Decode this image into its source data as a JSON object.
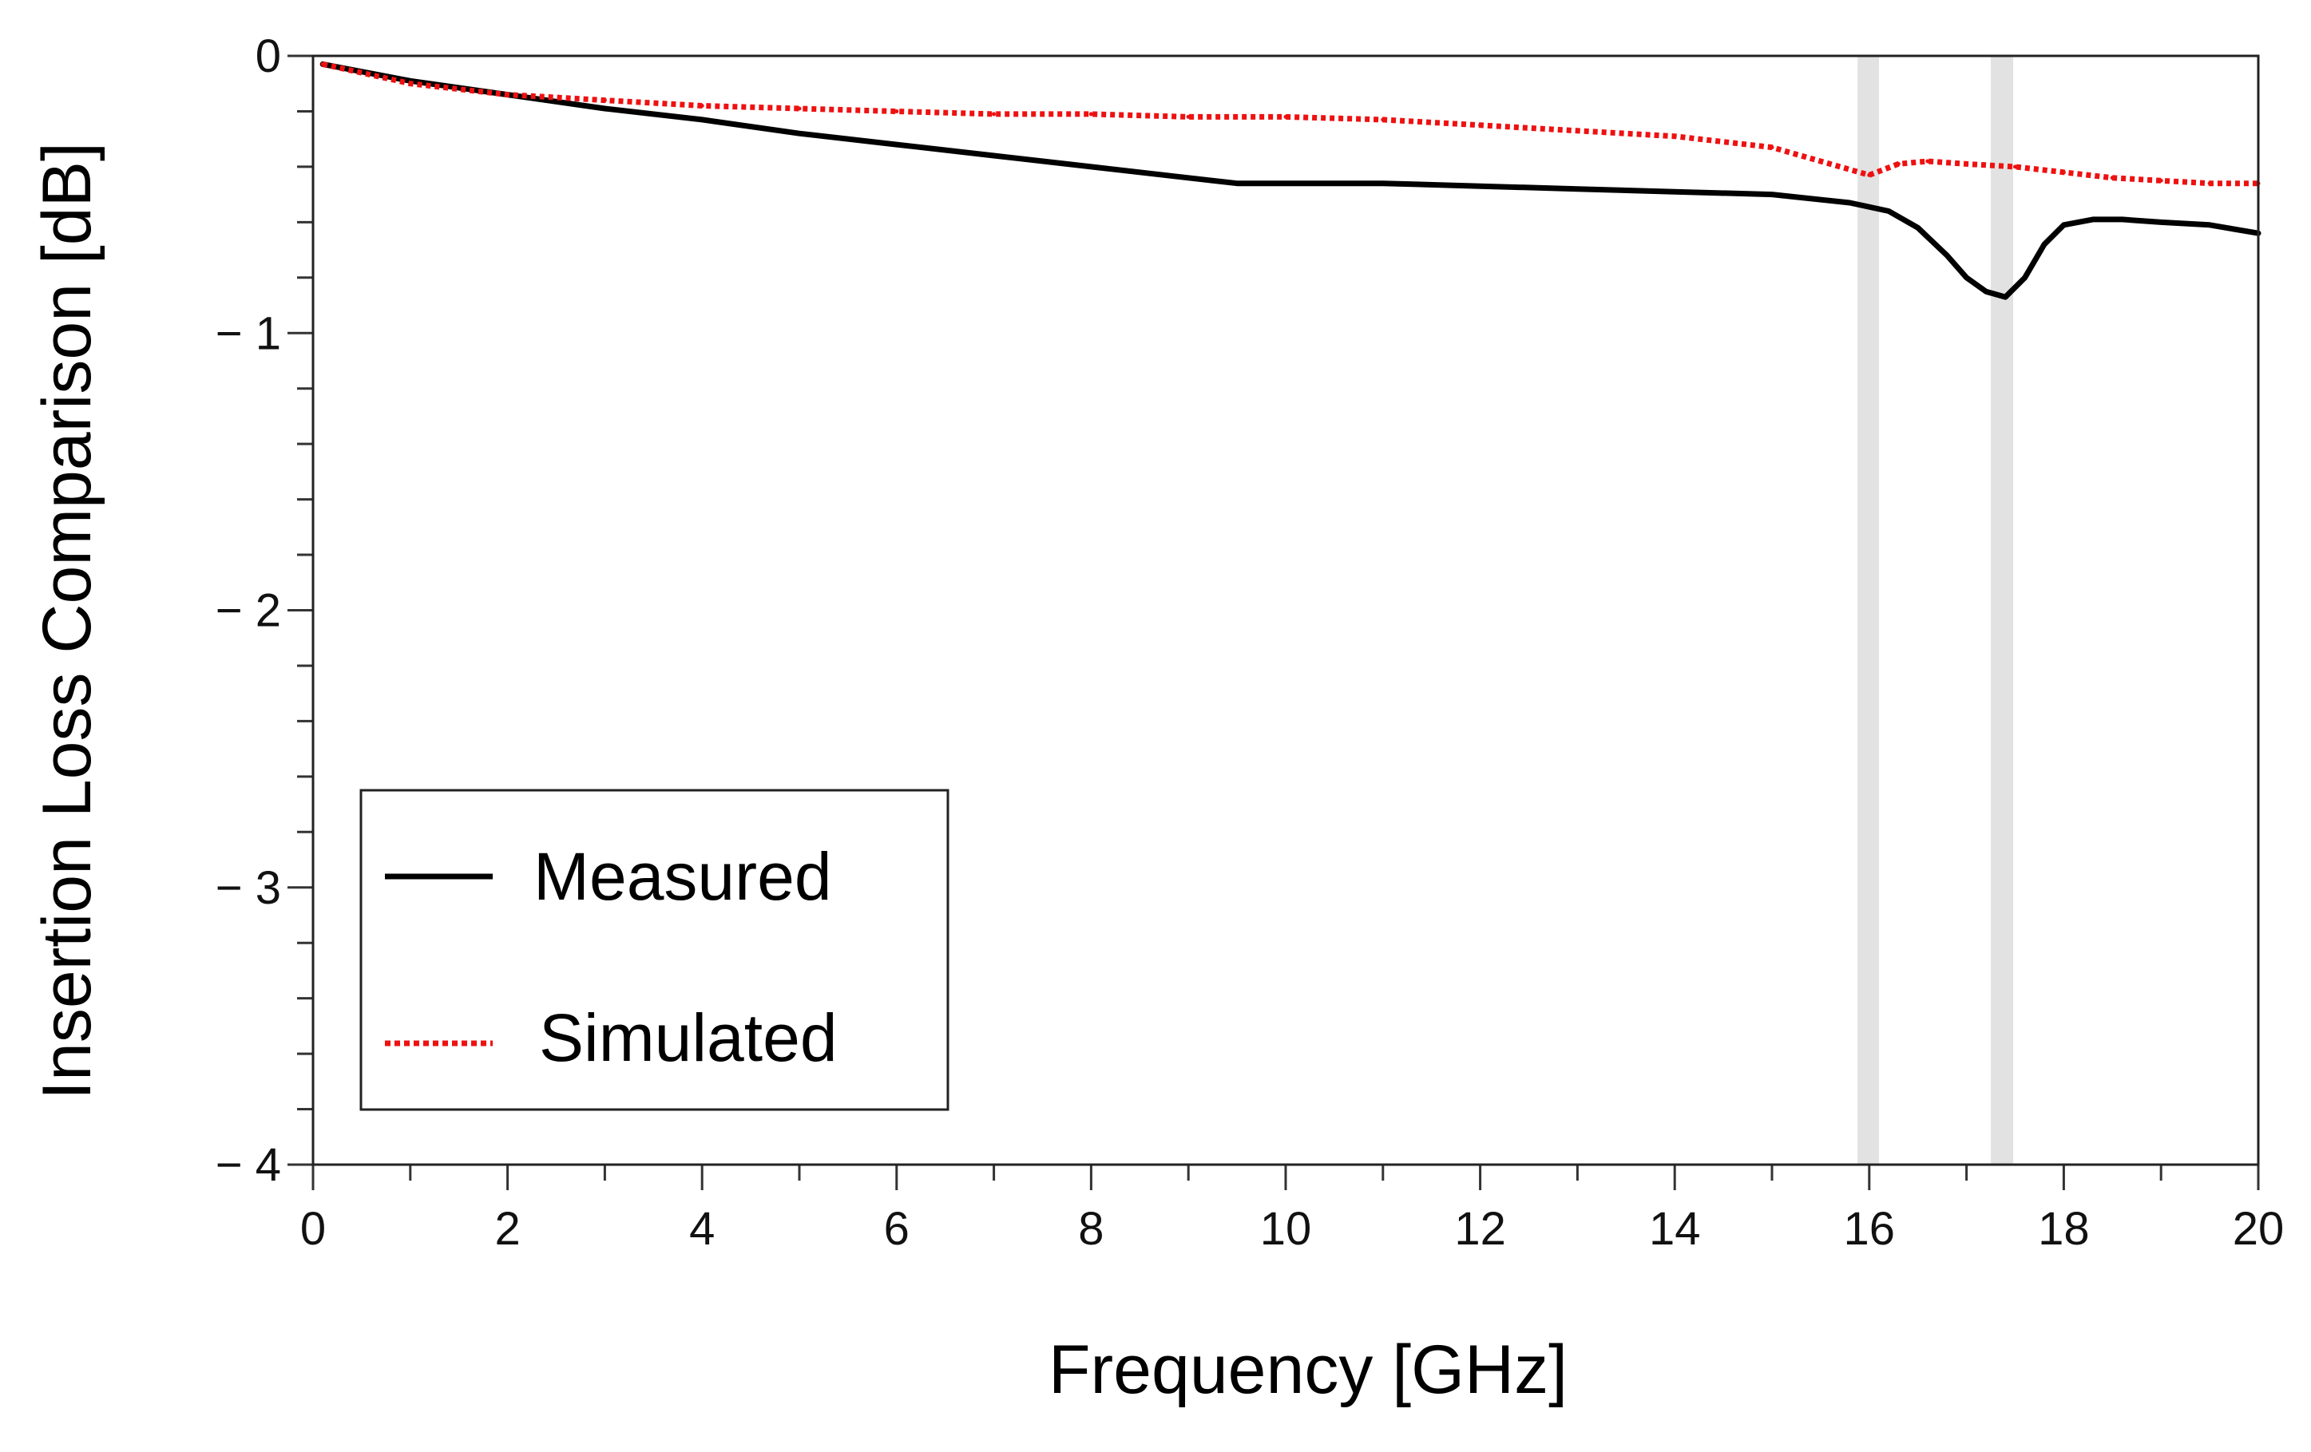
{
  "chart_data": {
    "type": "line",
    "title": "",
    "xlabel": "Frequency [GHz]",
    "ylabel": "Insertion Loss Comparison [dB]",
    "xlim": [
      0,
      20
    ],
    "ylim": [
      -4,
      0
    ],
    "x_major_ticks": [
      0,
      2,
      4,
      6,
      8,
      10,
      12,
      14,
      16,
      18,
      20
    ],
    "x_tick_labels": [
      "0",
      "2",
      "4",
      "6",
      "8",
      "10",
      "12",
      "14",
      "16",
      "18",
      "20"
    ],
    "y_major_ticks": [
      0,
      -1,
      -2,
      -3,
      -4
    ],
    "y_tick_labels": [
      "0",
      "− 1",
      "− 2",
      "− 3",
      "− 4"
    ],
    "x_minor_step": 1,
    "y_minor_step": 0.2,
    "grid": false,
    "highlight_bands": [
      {
        "x0": 15.88,
        "x1": 16.1
      },
      {
        "x0": 17.25,
        "x1": 17.48
      }
    ],
    "legend": {
      "position": "bottom-left",
      "entries": [
        "Measured",
        "Simulated"
      ]
    },
    "series": [
      {
        "name": "Measured",
        "color": "#000000",
        "style": "solid",
        "x": [
          0.1,
          1,
          2,
          3,
          4,
          5,
          6,
          7,
          8,
          9,
          9.5,
          10,
          11,
          12,
          13,
          14,
          15,
          15.8,
          16.2,
          16.5,
          16.8,
          17.0,
          17.2,
          17.4,
          17.6,
          17.8,
          18.0,
          18.3,
          18.6,
          19.0,
          19.5,
          20.0
        ],
        "y": [
          -0.03,
          -0.09,
          -0.14,
          -0.19,
          -0.23,
          -0.28,
          -0.32,
          -0.36,
          -0.4,
          -0.44,
          -0.46,
          -0.46,
          -0.46,
          -0.47,
          -0.48,
          -0.49,
          -0.5,
          -0.53,
          -0.56,
          -0.62,
          -0.72,
          -0.8,
          -0.85,
          -0.87,
          -0.8,
          -0.68,
          -0.61,
          -0.59,
          -0.59,
          -0.6,
          -0.61,
          -0.64
        ]
      },
      {
        "name": "Simulated",
        "color": "#ee1111",
        "style": "dotted",
        "x": [
          0.1,
          1,
          2,
          3,
          4,
          5,
          6,
          7,
          8,
          9,
          10,
          11,
          12,
          13,
          14,
          15,
          15.5,
          16.0,
          16.3,
          16.6,
          17.0,
          17.5,
          18.0,
          18.5,
          19.0,
          19.5,
          20.0
        ],
        "y": [
          -0.03,
          -0.1,
          -0.14,
          -0.16,
          -0.18,
          -0.19,
          -0.2,
          -0.21,
          -0.21,
          -0.22,
          -0.22,
          -0.23,
          -0.25,
          -0.27,
          -0.29,
          -0.33,
          -0.38,
          -0.43,
          -0.39,
          -0.38,
          -0.39,
          -0.4,
          -0.42,
          -0.44,
          -0.45,
          -0.46,
          -0.46
        ]
      }
    ]
  }
}
